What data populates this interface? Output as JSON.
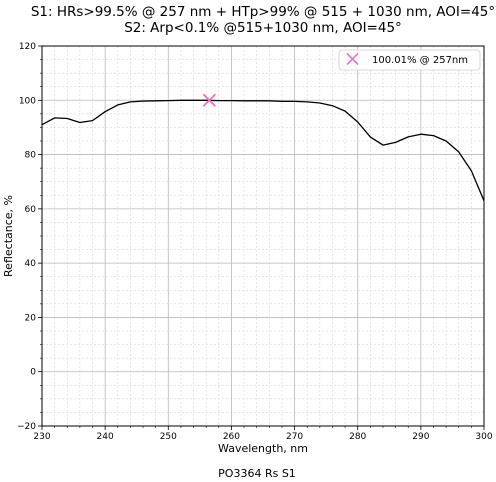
{
  "chart_data": {
    "type": "line",
    "title_lines": [
      "S1: HRs>99.5% @ 257 nm + HTp>99% @ 515 + 1030 nm, AOI=45°",
      "S2: Arp<0.1% @515+1030 nm, AOI=45°"
    ],
    "xlabel": "Wavelength, nm",
    "ylabel": "Reflectance, %",
    "footer": "PO3364 Rs S1",
    "xlim": [
      230,
      300
    ],
    "ylim": [
      -20,
      120
    ],
    "xticks": [
      230,
      240,
      250,
      260,
      270,
      280,
      290,
      300
    ],
    "yticks": [
      -20,
      0,
      20,
      40,
      60,
      80,
      100,
      120
    ],
    "x_minor_step": 2,
    "y_minor_step": 5,
    "grid": true,
    "legend_position": "top-right",
    "series": [
      {
        "color": "#000000",
        "x": [
          230,
          232,
          234,
          236,
          238,
          240,
          242,
          244,
          246,
          248,
          250,
          252,
          254,
          256,
          258,
          260,
          262,
          264,
          266,
          268,
          270,
          272,
          274,
          276,
          278,
          280,
          282,
          284,
          286,
          288,
          290,
          292,
          294,
          296,
          298,
          300
        ],
        "y": [
          91,
          93.5,
          93.3,
          91.8,
          92.5,
          95.8,
          98.3,
          99.4,
          99.7,
          99.8,
          99.9,
          100,
          100,
          100,
          99.9,
          99.9,
          99.8,
          99.8,
          99.8,
          99.6,
          99.6,
          99.4,
          99,
          98,
          96,
          92,
          86.5,
          83.5,
          84.5,
          86.5,
          87.5,
          87,
          85,
          81,
          74,
          63
        ]
      }
    ],
    "marker": {
      "x": 256.5,
      "y": 100.01,
      "symbol": "x",
      "color": "#e377c2",
      "label": "100.01% @ 257nm"
    }
  }
}
